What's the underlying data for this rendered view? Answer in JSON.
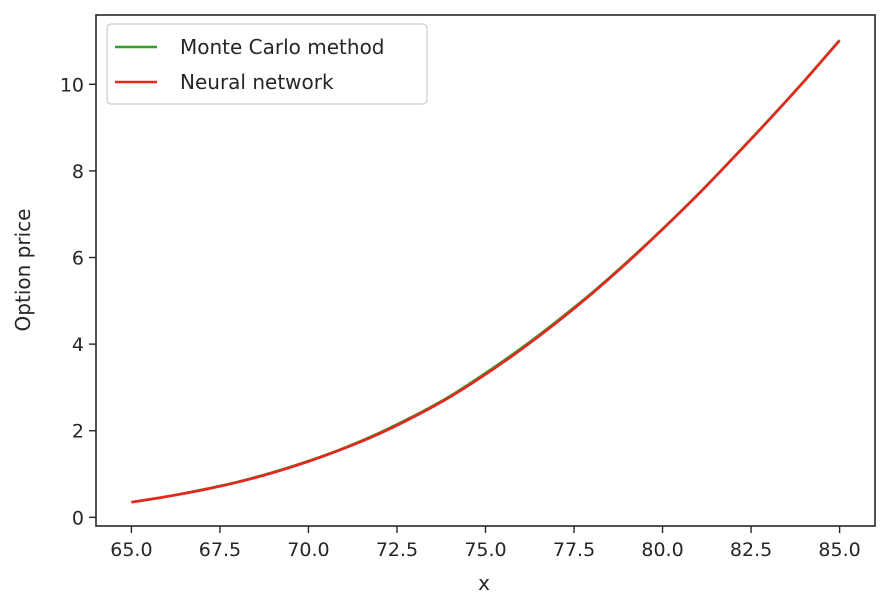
{
  "chart_data": {
    "type": "line",
    "title": "",
    "xlabel": "x",
    "ylabel": "Option price",
    "xlim": [
      64.0,
      86.0
    ],
    "ylim": [
      -0.2,
      11.6
    ],
    "xticks": [
      65.0,
      67.5,
      70.0,
      72.5,
      75.0,
      77.5,
      80.0,
      82.5,
      85.0
    ],
    "xtick_labels": [
      "65.0",
      "67.5",
      "70.0",
      "72.5",
      "75.0",
      "77.5",
      "80.0",
      "82.5",
      "85.0"
    ],
    "yticks": [
      0,
      2,
      4,
      6,
      8,
      10
    ],
    "ytick_labels": [
      "0",
      "2",
      "4",
      "6",
      "8",
      "10"
    ],
    "grid": false,
    "legend": {
      "position": "top-left"
    },
    "x": [
      65,
      66,
      67,
      68,
      69,
      70,
      71,
      72,
      73,
      74,
      75,
      76,
      77,
      78,
      79,
      80,
      81,
      82,
      83,
      84,
      85
    ],
    "series": [
      {
        "name": "Monte Carlo method",
        "color": "#2ca02c",
        "values": [
          0.35,
          0.48,
          0.64,
          0.82,
          1.04,
          1.3,
          1.6,
          1.95,
          2.35,
          2.8,
          3.33,
          3.9,
          4.52,
          5.18,
          5.9,
          6.66,
          7.46,
          8.31,
          9.18,
          10.08,
          11.02
        ]
      },
      {
        "name": "Neural network",
        "color": "#e8261e",
        "values": [
          0.35,
          0.48,
          0.63,
          0.81,
          1.03,
          1.29,
          1.59,
          1.93,
          2.33,
          2.78,
          3.3,
          3.87,
          4.49,
          5.16,
          5.88,
          6.65,
          7.45,
          8.3,
          9.17,
          10.07,
          11.01
        ]
      }
    ]
  }
}
